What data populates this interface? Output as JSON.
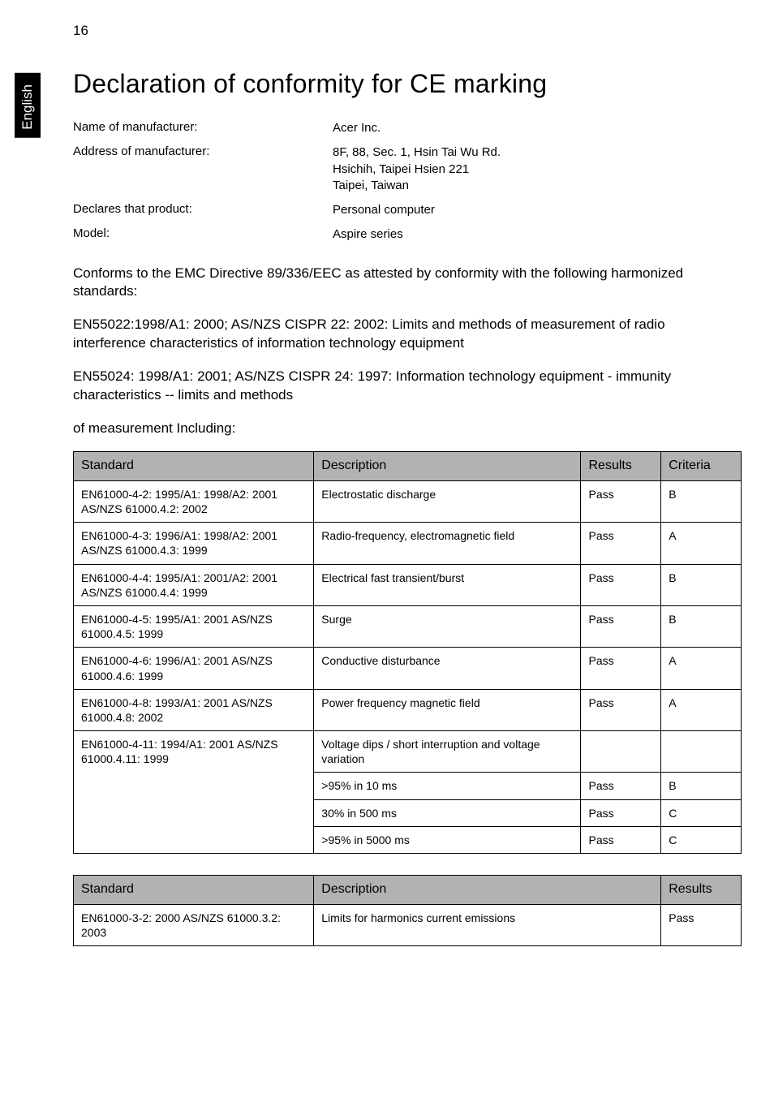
{
  "page_number": "16",
  "side_tab": "English",
  "title": "Declaration of conformity for CE marking",
  "info": {
    "manufacturer_label": "Name of manufacturer:",
    "manufacturer_value": "Acer Inc.",
    "address_label": "Address of manufacturer:",
    "address_value": "8F, 88, Sec. 1, Hsin Tai Wu Rd.\nHsichih, Taipei Hsien 221\nTaipei, Taiwan",
    "declares_label": "Declares that product:",
    "declares_value": "Personal computer",
    "model_label": "Model:",
    "model_value": "Aspire series"
  },
  "para1": "Conforms to the EMC Directive 89/336/EEC as attested by conformity with the following harmonized standards:",
  "para2": "EN55022:1998/A1: 2000; AS/NZS CISPR 22: 2002: Limits and methods of measurement of radio interference characteristics of information technology equipment",
  "para3": "EN55024: 1998/A1: 2001; AS/NZS CISPR 24: 1997: Information technology equipment - immunity characteristics -- limits and methods",
  "sub1": "of measurement Including:",
  "table1": {
    "headers": {
      "standard": "Standard",
      "description": "Description",
      "results": "Results",
      "criteria": "Criteria"
    },
    "header_bg": "#b2b2b2",
    "border_color": "#000000",
    "rows": [
      {
        "standard": "EN61000-4-2: 1995/A1: 1998/A2: 2001 AS/NZS 61000.4.2: 2002",
        "description": "Electrostatic discharge",
        "results": "Pass",
        "criteria": "B"
      },
      {
        "standard": "EN61000-4-3: 1996/A1: 1998/A2: 2001 AS/NZS 61000.4.3: 1999",
        "description": "Radio-frequency, electromagnetic field",
        "results": "Pass",
        "criteria": "A"
      },
      {
        "standard": "EN61000-4-4: 1995/A1: 2001/A2: 2001 AS/NZS 61000.4.4: 1999",
        "description": "Electrical fast transient/burst",
        "results": "Pass",
        "criteria": "B"
      },
      {
        "standard": "EN61000-4-5: 1995/A1: 2001 AS/NZS 61000.4.5: 1999",
        "description": "Surge",
        "results": "Pass",
        "criteria": "B"
      },
      {
        "standard": "EN61000-4-6: 1996/A1: 2001 AS/NZS 61000.4.6: 1999",
        "description": "Conductive disturbance",
        "results": "Pass",
        "criteria": "A"
      },
      {
        "standard": "EN61000-4-8: 1993/A1: 2001 AS/NZS 61000.4.8: 2002",
        "description": "Power frequency magnetic field",
        "results": "Pass",
        "criteria": "A"
      },
      {
        "standard": "EN61000-4-11: 1994/A1: 2001 AS/NZS 61000.4.11: 1999",
        "description": "Voltage dips / short interruption and voltage variation",
        "results": "",
        "criteria": ""
      },
      {
        "standard": "",
        "description": ">95% in 10 ms",
        "results": "Pass",
        "criteria": "B"
      },
      {
        "standard": "",
        "description": "30% in 500 ms",
        "results": "Pass",
        "criteria": "C"
      },
      {
        "standard": "",
        "description": ">95% in 5000 ms",
        "results": "Pass",
        "criteria": "C"
      }
    ],
    "rowspan_start_index": 6,
    "rowspan_count": 4
  },
  "table2": {
    "headers": {
      "standard": "Standard",
      "description": "Description",
      "results": "Results"
    },
    "header_bg": "#b2b2b2",
    "rows": [
      {
        "standard": "EN61000-3-2: 2000 AS/NZS 61000.3.2: 2003",
        "description": "Limits for harmonics current emissions",
        "results": "Pass"
      }
    ]
  }
}
